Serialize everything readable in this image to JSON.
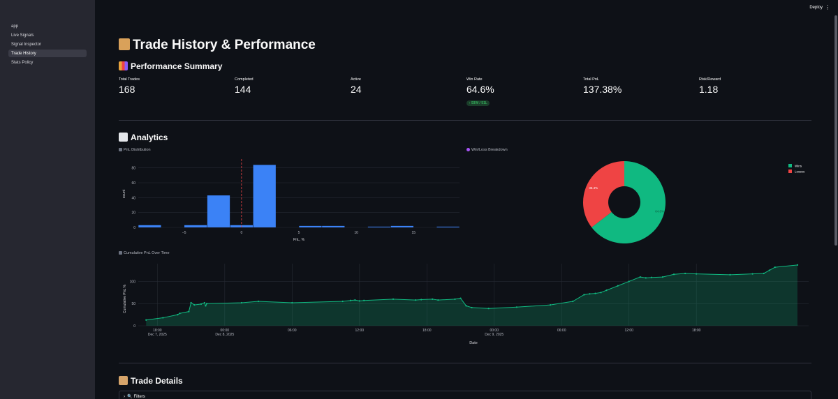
{
  "sidebar": {
    "items": [
      {
        "label": "app"
      },
      {
        "label": "Live Signals"
      },
      {
        "label": "Signal Inspector"
      },
      {
        "label": "Trade History"
      },
      {
        "label": "Stats Policy"
      }
    ],
    "active_index": 3
  },
  "header": {
    "deploy_label": "Deploy",
    "menu_icon": "vertical-dots-icon"
  },
  "page": {
    "title": "Trade History & Performance",
    "title_icon": "scroll-icon"
  },
  "summary": {
    "heading": "Performance Summary",
    "heading_icon": "bar-chart-icon",
    "metrics": [
      {
        "label": "Total Trades",
        "value": "168"
      },
      {
        "label": "Completed",
        "value": "144"
      },
      {
        "label": "Active",
        "value": "24"
      },
      {
        "label": "Win Rate",
        "value": "64.6%",
        "delta": "↑ 93W / 51L"
      },
      {
        "label": "Total PnL",
        "value": "137.38%"
      },
      {
        "label": "Risk/Reward",
        "value": "1.18"
      }
    ]
  },
  "analytics": {
    "heading": "Analytics",
    "heading_icon": "chart-increasing-icon"
  },
  "trade_details": {
    "heading": "Trade Details",
    "heading_icon": "clipboard-icon",
    "filters_label": "Filters",
    "filters_icon": "magnifier-icon"
  },
  "colors": {
    "accent_blue": "#3b82f6",
    "win_green": "#10b981",
    "loss_red": "#ef4444",
    "bg": "#0e1117",
    "sidebar": "#262730"
  },
  "chart_data": [
    {
      "type": "bar",
      "title": "PnL Distribution",
      "xlabel": "PnL, %",
      "ylabel": "count",
      "ylim": [
        0,
        90
      ],
      "xlim": [
        -9,
        19
      ],
      "x_ticks": [
        -5,
        0,
        5,
        10,
        15
      ],
      "y_ticks": [
        0,
        20,
        40,
        60,
        80
      ],
      "bins": [
        {
          "x0": -9,
          "x1": -7,
          "count": 3
        },
        {
          "x0": -5,
          "x1": -3,
          "count": 3
        },
        {
          "x0": -3,
          "x1": -1,
          "count": 43
        },
        {
          "x0": -1,
          "x1": 1,
          "count": 3
        },
        {
          "x0": 1,
          "x1": 3,
          "count": 84
        },
        {
          "x0": 5,
          "x1": 7,
          "count": 2
        },
        {
          "x0": 7,
          "x1": 9,
          "count": 2
        },
        {
          "x0": 11,
          "x1": 13,
          "count": 1
        },
        {
          "x0": 13,
          "x1": 15,
          "count": 2
        },
        {
          "x0": 17,
          "x1": 19,
          "count": 1
        }
      ],
      "reference_line_x": 0
    },
    {
      "type": "pie",
      "title": "Win/Loss Breakdown",
      "hole": true,
      "legend": "top-right",
      "slices": [
        {
          "label": "Wins",
          "value": 64.6,
          "text": "64.6%",
          "color": "#10b981"
        },
        {
          "label": "Losses",
          "value": 35.4,
          "text": "35.4%",
          "color": "#ef4444"
        }
      ]
    },
    {
      "type": "area",
      "title": "Cumulative PnL Over Time",
      "xlabel": "Date",
      "ylabel": "Cumulative PnL %",
      "ylim": [
        0,
        140
      ],
      "y_ticks": [
        0,
        50,
        100
      ],
      "x_ticks": [
        "18:00\nDec 7, 2025",
        "00:00\nDec 8, 2025",
        "06:00",
        "12:00",
        "18:00",
        "00:00\nDec 9, 2025",
        "06:00",
        "12:00",
        "18:00"
      ],
      "x_hours": [
        -7,
        -5.5,
        -4.2,
        -4,
        -3.2,
        -3,
        -2.7,
        -2.1,
        -1.8,
        -1.7,
        -1.6,
        1.5,
        3,
        6,
        10.5,
        11.2,
        11.6,
        12,
        12.4,
        15,
        17,
        17.5,
        18.5,
        19,
        20.5,
        21,
        21.5,
        22,
        23.5,
        26,
        29,
        31,
        32,
        32.5,
        33,
        33.5,
        34,
        35,
        36,
        37,
        37.5,
        38,
        39,
        40,
        41,
        42,
        45,
        47,
        48,
        48.5,
        49,
        51
      ],
      "y_values": [
        13,
        18,
        25,
        28,
        32,
        52,
        47,
        49,
        52,
        45,
        50,
        52,
        55,
        52,
        55,
        57,
        58,
        56,
        57,
        60,
        58,
        59,
        60,
        58,
        60,
        62,
        45,
        41,
        39,
        42,
        47,
        55,
        70,
        72,
        73,
        75,
        80,
        90,
        100,
        110,
        108,
        109,
        110,
        116,
        118,
        117,
        115,
        117,
        118,
        125,
        132,
        137
      ]
    }
  ]
}
